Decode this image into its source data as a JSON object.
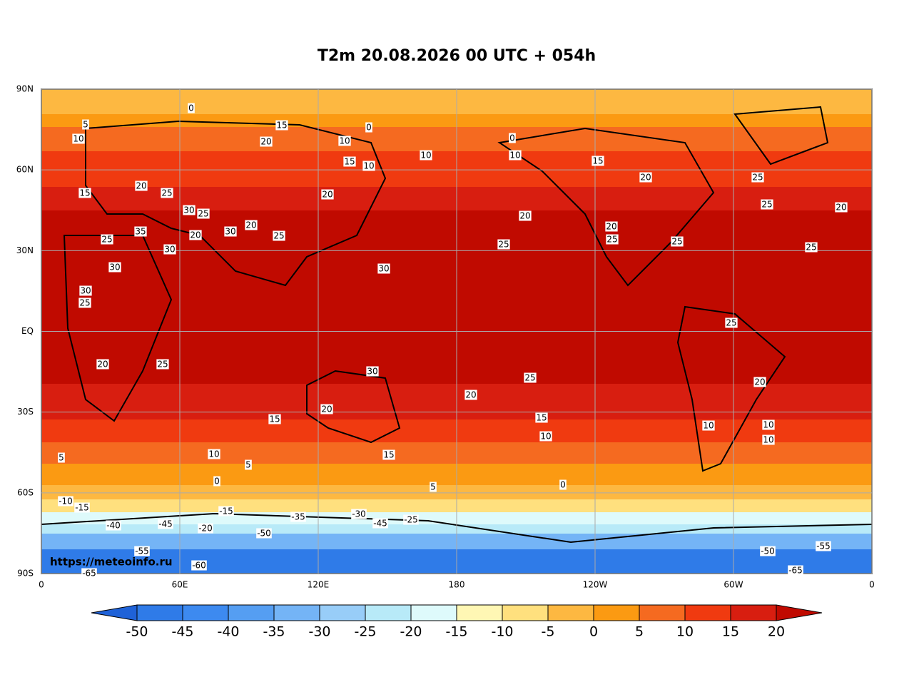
{
  "title": "T2m 20.08.2026 00 UTC + 054h",
  "map": {
    "x_ticks": [
      "0",
      "60E",
      "120E",
      "180",
      "120W",
      "60W",
      "0"
    ],
    "y_ticks": [
      "90N",
      "60N",
      "30N",
      "EQ",
      "30S",
      "60S",
      "90S"
    ],
    "watermark": "https://meteoinfo.ru",
    "contour_labels": [
      0,
      5,
      10,
      15,
      20,
      0,
      10,
      15,
      10,
      10,
      0,
      10,
      15,
      20,
      25,
      25,
      30,
      25,
      35,
      30,
      20,
      20,
      20,
      15,
      25,
      25,
      30,
      30,
      25,
      30,
      25,
      20,
      25,
      20,
      25,
      25,
      20,
      20,
      30,
      25,
      30,
      20,
      25,
      25,
      20,
      15,
      15,
      10,
      10,
      15,
      10,
      5,
      0,
      5,
      0,
      5,
      -10,
      -15,
      -20,
      -35,
      -45,
      -50,
      -55,
      -60,
      -65,
      -30,
      -45,
      -40,
      -50,
      -55,
      -65,
      -25,
      -15,
      10,
      20,
      10,
      25,
      20
    ]
  },
  "colorbar": {
    "levels": [
      -50,
      -45,
      -40,
      -35,
      -30,
      -25,
      -20,
      -15,
      -10,
      -5,
      0,
      5,
      10,
      15,
      20
    ],
    "colors": [
      "#1f62d8",
      "#2f7be8",
      "#3d8af0",
      "#559ef2",
      "#74b4f6",
      "#98cdf8",
      "#b8eaf8",
      "#defafb",
      "#fff7b4",
      "#ffe07e",
      "#fdb841",
      "#fb9a12",
      "#f56a20",
      "#f03a10",
      "#d81e10",
      "#c00a00"
    ]
  }
}
